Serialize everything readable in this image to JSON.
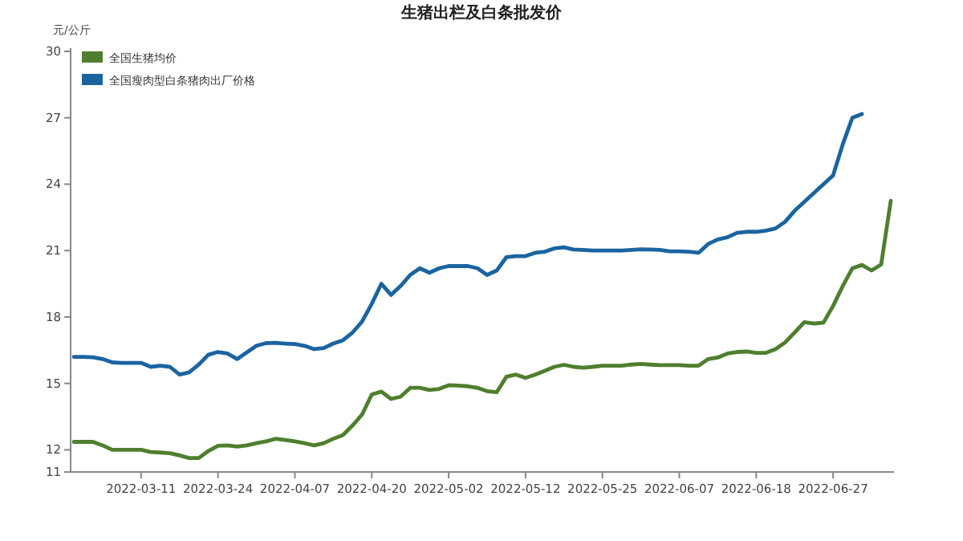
{
  "chart_data": {
    "type": "line",
    "title": "生猪出栏及白条批发价",
    "ylabel": "元/公斤",
    "categories": [
      null,
      null,
      null,
      null,
      null,
      null,
      null,
      "2022-03-11",
      null,
      null,
      null,
      null,
      null,
      null,
      null,
      "2022-03-24",
      null,
      null,
      null,
      null,
      null,
      null,
      null,
      "2022-04-07",
      null,
      null,
      null,
      null,
      null,
      null,
      null,
      "2022-04-20",
      null,
      null,
      null,
      null,
      null,
      null,
      null,
      "2022-05-02",
      null,
      null,
      null,
      null,
      null,
      null,
      null,
      "2022-05-12",
      null,
      null,
      null,
      null,
      null,
      null,
      null,
      "2022-05-25",
      null,
      null,
      null,
      null,
      null,
      null,
      null,
      "2022-06-07",
      null,
      null,
      null,
      null,
      null,
      null,
      null,
      "2022-06-18",
      null,
      null,
      null,
      null,
      null,
      null,
      null,
      "2022-06-27",
      null,
      null,
      null,
      null,
      null,
      null
    ],
    "series": [
      {
        "name": "全国生猪均价",
        "color": "#4e7f2e",
        "values": [
          12.36,
          12.36,
          12.36,
          12.2,
          12.0,
          12.0,
          12.0,
          12.0,
          11.9,
          11.88,
          11.85,
          11.75,
          11.63,
          11.63,
          11.95,
          12.18,
          12.2,
          12.15,
          12.2,
          12.3,
          12.38,
          12.5,
          12.45,
          12.38,
          12.3,
          12.2,
          12.3,
          12.5,
          12.67,
          13.1,
          13.6,
          14.5,
          14.63,
          14.3,
          14.4,
          14.8,
          14.8,
          14.7,
          14.75,
          14.92,
          14.9,
          14.87,
          14.8,
          14.65,
          14.6,
          15.3,
          15.4,
          15.25,
          15.4,
          15.57,
          15.75,
          15.84,
          15.75,
          15.71,
          15.75,
          15.8,
          15.8,
          15.8,
          15.85,
          15.88,
          15.85,
          15.83,
          15.83,
          15.83,
          15.8,
          15.8,
          16.1,
          16.17,
          16.35,
          16.42,
          16.44,
          16.38,
          16.38,
          16.55,
          16.85,
          17.3,
          17.77,
          17.7,
          17.75,
          18.5,
          19.4,
          20.2,
          20.35,
          20.1,
          20.37,
          23.25
        ]
      },
      {
        "name": "全国瘦肉型白条猪肉出厂价格",
        "color": "#1a64a0",
        "values": [
          16.2,
          16.2,
          16.18,
          16.1,
          15.95,
          15.93,
          15.93,
          15.93,
          15.75,
          15.8,
          15.75,
          15.4,
          15.5,
          15.85,
          16.3,
          16.42,
          16.35,
          16.1,
          16.4,
          16.7,
          16.82,
          16.83,
          16.8,
          16.78,
          16.7,
          16.55,
          16.6,
          16.8,
          16.95,
          17.3,
          17.8,
          18.6,
          19.5,
          19.0,
          19.4,
          19.9,
          20.2,
          20.0,
          20.2,
          20.3,
          20.3,
          20.3,
          20.2,
          19.9,
          20.1,
          20.7,
          20.75,
          20.75,
          20.9,
          20.95,
          21.1,
          21.15,
          21.05,
          21.03,
          21.0,
          21.0,
          21.0,
          21.0,
          21.03,
          21.06,
          21.05,
          21.03,
          20.97,
          20.97,
          20.95,
          20.9,
          21.3,
          21.5,
          21.6,
          21.8,
          21.85,
          21.85,
          21.9,
          22.0,
          22.3,
          22.8,
          23.2,
          23.6,
          24.0,
          24.4,
          25.8,
          27.0,
          27.17,
          null,
          null,
          null
        ]
      }
    ],
    "ylim": [
      11,
      30
    ],
    "yticks": [
      11,
      12,
      15,
      18,
      21,
      24,
      27,
      30
    ],
    "legend": "top left"
  }
}
